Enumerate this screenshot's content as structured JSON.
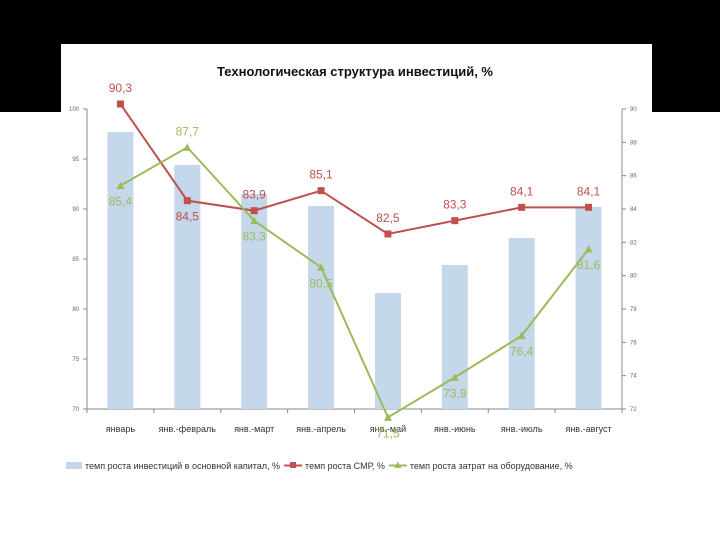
{
  "chart_data": {
    "type": "bar+line",
    "title": "Технологическая структура инвестиций, %",
    "categories": [
      "январь",
      "янв.-февраль",
      "янв.-март",
      "янв.-апрель",
      "янв.-май",
      "янв.-июнь",
      "янв.-июль",
      "янв.-август"
    ],
    "left_axis": {
      "min": 70,
      "max": 100,
      "ticks": [
        "70",
        "75",
        "80",
        "85",
        "90",
        "95",
        "100"
      ]
    },
    "right_axis": {
      "min": 72,
      "max": 90,
      "ticks": [
        "72",
        "74",
        "76",
        "78",
        "80",
        "82",
        "84",
        "86",
        "88",
        "90"
      ]
    },
    "series": [
      {
        "name": "темп роста инвестиций в основной капитал, %",
        "kind": "bar",
        "axis": "left",
        "color": "#c5d7ea",
        "values": [
          97.7,
          94.4,
          91.5,
          90.3,
          81.6,
          84.4,
          87.1,
          90.2
        ]
      },
      {
        "name": "темп роста СМР, %",
        "kind": "line",
        "axis": "right",
        "color": "#c0504d",
        "values": [
          90.3,
          84.5,
          83.9,
          85.1,
          82.5,
          83.3,
          84.1,
          84.1
        ],
        "labels": [
          "90,3",
          "84,5",
          "83,9",
          "85,1",
          "82,5",
          "83,3",
          "84,1",
          "84,1"
        ]
      },
      {
        "name": "темп роста затрат на оборудование, %",
        "kind": "line",
        "axis": "right",
        "color": "#9bbb59",
        "values": [
          85.4,
          87.7,
          83.3,
          80.5,
          71.5,
          73.9,
          76.4,
          81.6
        ],
        "labels": [
          "85,4",
          "87,7",
          "83,3",
          "80,5",
          "71,5",
          "73,9",
          "76,4",
          "81,6"
        ]
      }
    ],
    "legend_position": "bottom",
    "grid": false
  }
}
